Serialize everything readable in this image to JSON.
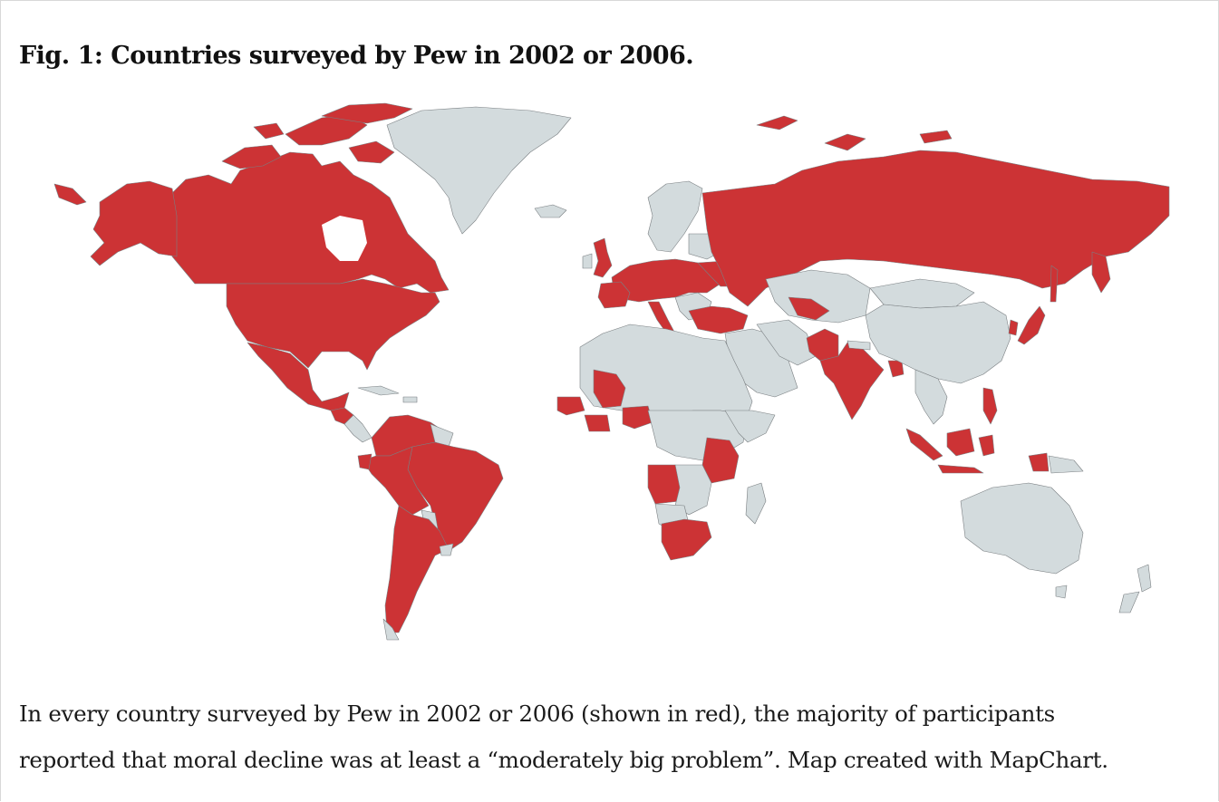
{
  "figure": {
    "title": "Fig. 1: Countries surveyed by Pew in 2002 or 2006.",
    "caption_line_1": "In every country surveyed by Pew in 2002 or 2006 (shown in red), the majority of participants",
    "caption_line_2": "reported that moral decline was at least a “moderately big problem”. Map created with MapChart."
  },
  "map": {
    "surveyed_color": "#cc3335",
    "not_surveyed_color": "#d3dbdd",
    "border_color": "#7a7f82"
  }
}
